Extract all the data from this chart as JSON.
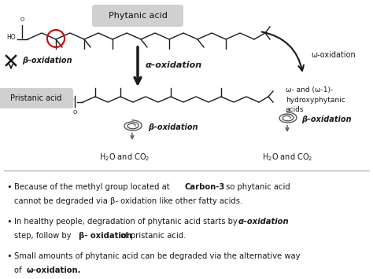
{
  "bg_color": "#ffffff",
  "phytanic_label": "Phytanic acid",
  "pristanic_label": "Pristanic acid",
  "beta_ox_blocked": "β–oxidation",
  "alpha_ox": "α–oxidation",
  "omega_ox": "ω-oxidation",
  "beta_ox2": "β–oxidation",
  "beta_ox3": "β–oxidation",
  "omega_products": "ω- and (ω-1)-\nhydroxyphytanic\nacids",
  "label_color": "#1a1a1a",
  "arrow_color": "#111111",
  "red_circle_color": "#cc0000",
  "gray_badge_color": "#c8c8c8"
}
